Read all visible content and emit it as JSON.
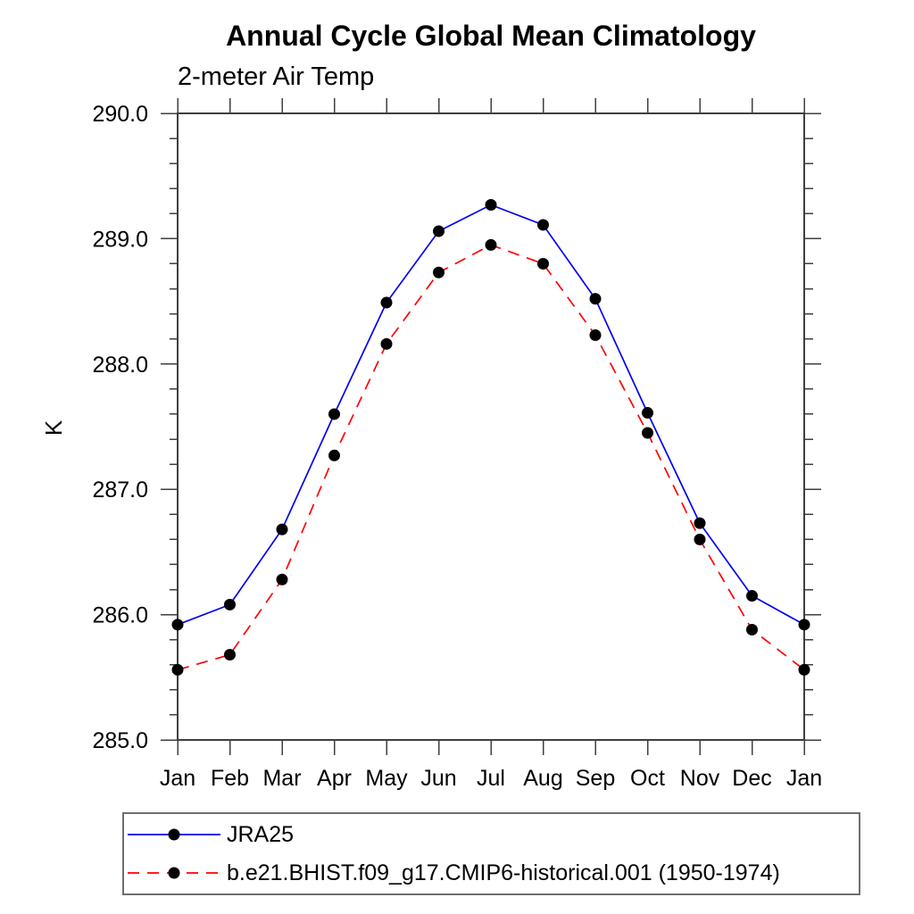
{
  "chart_data": {
    "type": "line",
    "title": "Annual Cycle Global Mean Climatology",
    "subtitle": "2-meter Air Temp",
    "ylabel": "K",
    "x_categories": [
      "Jan",
      "Feb",
      "Mar",
      "Apr",
      "May",
      "Jun",
      "Jul",
      "Aug",
      "Sep",
      "Oct",
      "Nov",
      "Dec",
      "Jan"
    ],
    "ylim": [
      285.0,
      290.0
    ],
    "ytick_values": [
      285.0,
      286.0,
      287.0,
      288.0,
      289.0,
      290.0
    ],
    "ytick_labels": [
      "285.0",
      "286.0",
      "287.0",
      "288.0",
      "289.0",
      "290.0"
    ],
    "ytick_minor_step": 0.2,
    "grid": false,
    "legend_position": "bottom-left",
    "axis_color": "#3f3f3f",
    "marker_color": "#000000",
    "series": [
      {
        "name": "JRA25",
        "color": "#0000ee",
        "style": "solid",
        "marker": "circle",
        "values": [
          285.92,
          286.08,
          286.68,
          287.6,
          288.49,
          289.06,
          289.27,
          289.11,
          288.52,
          287.61,
          286.73,
          286.15,
          285.92
        ]
      },
      {
        "name": "b.e21.BHIST.f09_g17.CMIP6-historical.001 (1950-1974)",
        "color": "#ff0000",
        "style": "dashed",
        "marker": "circle",
        "values": [
          285.56,
          285.68,
          286.28,
          287.27,
          288.16,
          288.73,
          288.95,
          288.8,
          288.23,
          287.45,
          286.6,
          285.88,
          285.56
        ]
      }
    ]
  }
}
